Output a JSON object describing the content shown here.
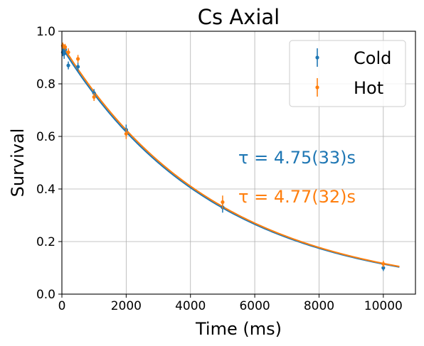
{
  "chart_data": {
    "type": "scatter",
    "title": "Cs Axial",
    "xlabel": "Time (ms)",
    "ylabel": "Survival",
    "xlim": [
      0,
      11000
    ],
    "ylim": [
      0,
      1.0
    ],
    "xticks": [
      "0",
      "2000",
      "4000",
      "6000",
      "8000",
      "10000"
    ],
    "yticks": [
      "0.0",
      "0.2",
      "0.4",
      "0.6",
      "0.8",
      "1.0"
    ],
    "grid": true,
    "legend_position": "top-right",
    "series": [
      {
        "name": "Cold",
        "color": "#1f77b4",
        "points": [
          {
            "x": 30,
            "y": 0.92,
            "err": 0.015
          },
          {
            "x": 70,
            "y": 0.915,
            "err": 0.02
          },
          {
            "x": 100,
            "y": 0.93,
            "err": 0.015
          },
          {
            "x": 200,
            "y": 0.87,
            "err": 0.015
          },
          {
            "x": 500,
            "y": 0.865,
            "err": 0.015
          },
          {
            "x": 1000,
            "y": 0.765,
            "err": 0.015
          },
          {
            "x": 2000,
            "y": 0.625,
            "err": 0.02
          },
          {
            "x": 5000,
            "y": 0.33,
            "err": 0.02
          },
          {
            "x": 10000,
            "y": 0.1,
            "err": 0.012
          }
        ],
        "fit": {
          "A": 0.94,
          "tau_ms": 4750
        },
        "annotation": "τ = 4.75(33)s"
      },
      {
        "name": "Hot",
        "color": "#ff7f0e",
        "points": [
          {
            "x": 30,
            "y": 0.945,
            "err": 0.012
          },
          {
            "x": 100,
            "y": 0.94,
            "err": 0.012
          },
          {
            "x": 200,
            "y": 0.92,
            "err": 0.015
          },
          {
            "x": 500,
            "y": 0.895,
            "err": 0.015
          },
          {
            "x": 1000,
            "y": 0.75,
            "err": 0.015
          },
          {
            "x": 2000,
            "y": 0.61,
            "err": 0.02
          },
          {
            "x": 5000,
            "y": 0.35,
            "err": 0.025
          },
          {
            "x": 10000,
            "y": 0.115,
            "err": 0.012
          }
        ],
        "fit": {
          "A": 0.95,
          "tau_ms": 4770
        },
        "annotation": "τ = 4.77(32)s"
      }
    ]
  }
}
